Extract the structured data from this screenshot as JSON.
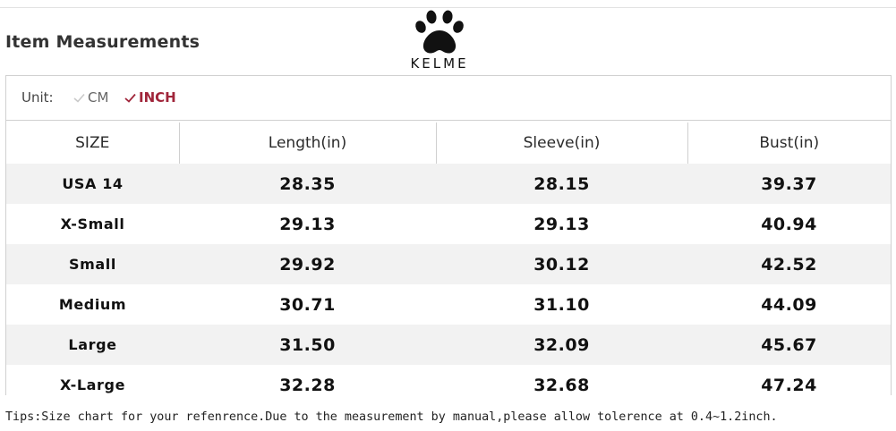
{
  "header": {
    "title": "Item Measurements",
    "brand_name": "KELME",
    "logo_icon": "paw-print-icon"
  },
  "units": {
    "label": "Unit:",
    "options": [
      {
        "label": "CM",
        "selected": false,
        "color": "#666666"
      },
      {
        "label": "INCH",
        "selected": true,
        "color": "#a0253a"
      }
    ]
  },
  "table": {
    "columns": [
      "SIZE",
      "Length(in)",
      "Sleeve(in)",
      "Bust(in)"
    ],
    "rows": [
      {
        "size": "USA 14",
        "length": "28.35",
        "sleeve": "28.15",
        "bust": "39.37"
      },
      {
        "size": "X-Small",
        "length": "29.13",
        "sleeve": "29.13",
        "bust": "40.94"
      },
      {
        "size": "Small",
        "length": "29.92",
        "sleeve": "30.12",
        "bust": "42.52"
      },
      {
        "size": "Medium",
        "length": "30.71",
        "sleeve": "31.10",
        "bust": "44.09"
      },
      {
        "size": "Large",
        "length": "31.50",
        "sleeve": "32.09",
        "bust": "45.67"
      },
      {
        "size": "X-Large",
        "length": "32.28",
        "sleeve": "32.68",
        "bust": "47.24"
      }
    ],
    "stripe_color": "#f2f2f2",
    "border_color": "#d0d0d0"
  },
  "footer": {
    "tips": "Tips:Size chart for your refenrence.Due to the measurement by manual,please allow tolerence at 0.4~1.2inch."
  }
}
